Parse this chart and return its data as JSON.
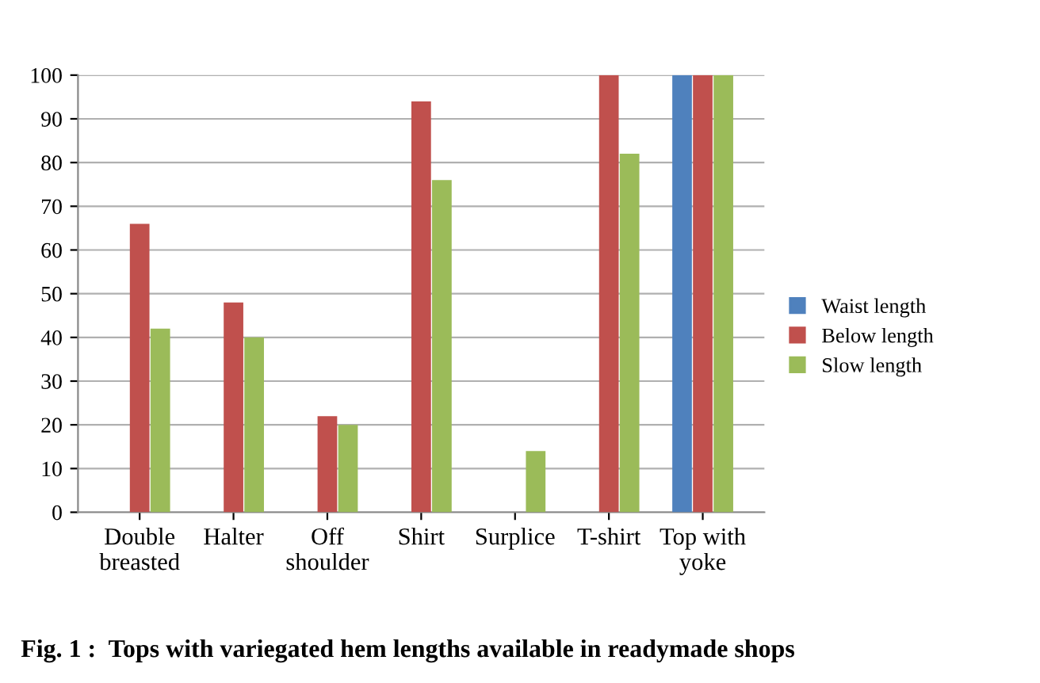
{
  "chart_data": {
    "type": "bar",
    "title": "Fig. 1 :  Tops with variegated hem lengths available in readymade shops",
    "categories": [
      "Double\nbreasted",
      "Halter",
      "Off\nshoulder",
      "Shirt",
      "Surplice",
      "T-shirt",
      "Top with\nyoke"
    ],
    "series": [
      {
        "name": "Waist length",
        "color": "#4f81bd",
        "values": [
          0,
          0,
          0,
          0,
          0,
          0,
          100
        ]
      },
      {
        "name": "Below length",
        "color": "#c0504d",
        "values": [
          66,
          48,
          22,
          94,
          0,
          100,
          100
        ]
      },
      {
        "name": "Slow length",
        "color": "#9bbb59",
        "values": [
          42,
          40,
          20,
          76,
          14,
          82,
          100
        ]
      }
    ],
    "ylim": [
      0,
      100
    ],
    "yticks": [
      0,
      10,
      20,
      30,
      40,
      50,
      60,
      70,
      80,
      90,
      100
    ],
    "grid": "y",
    "legend": "right"
  }
}
